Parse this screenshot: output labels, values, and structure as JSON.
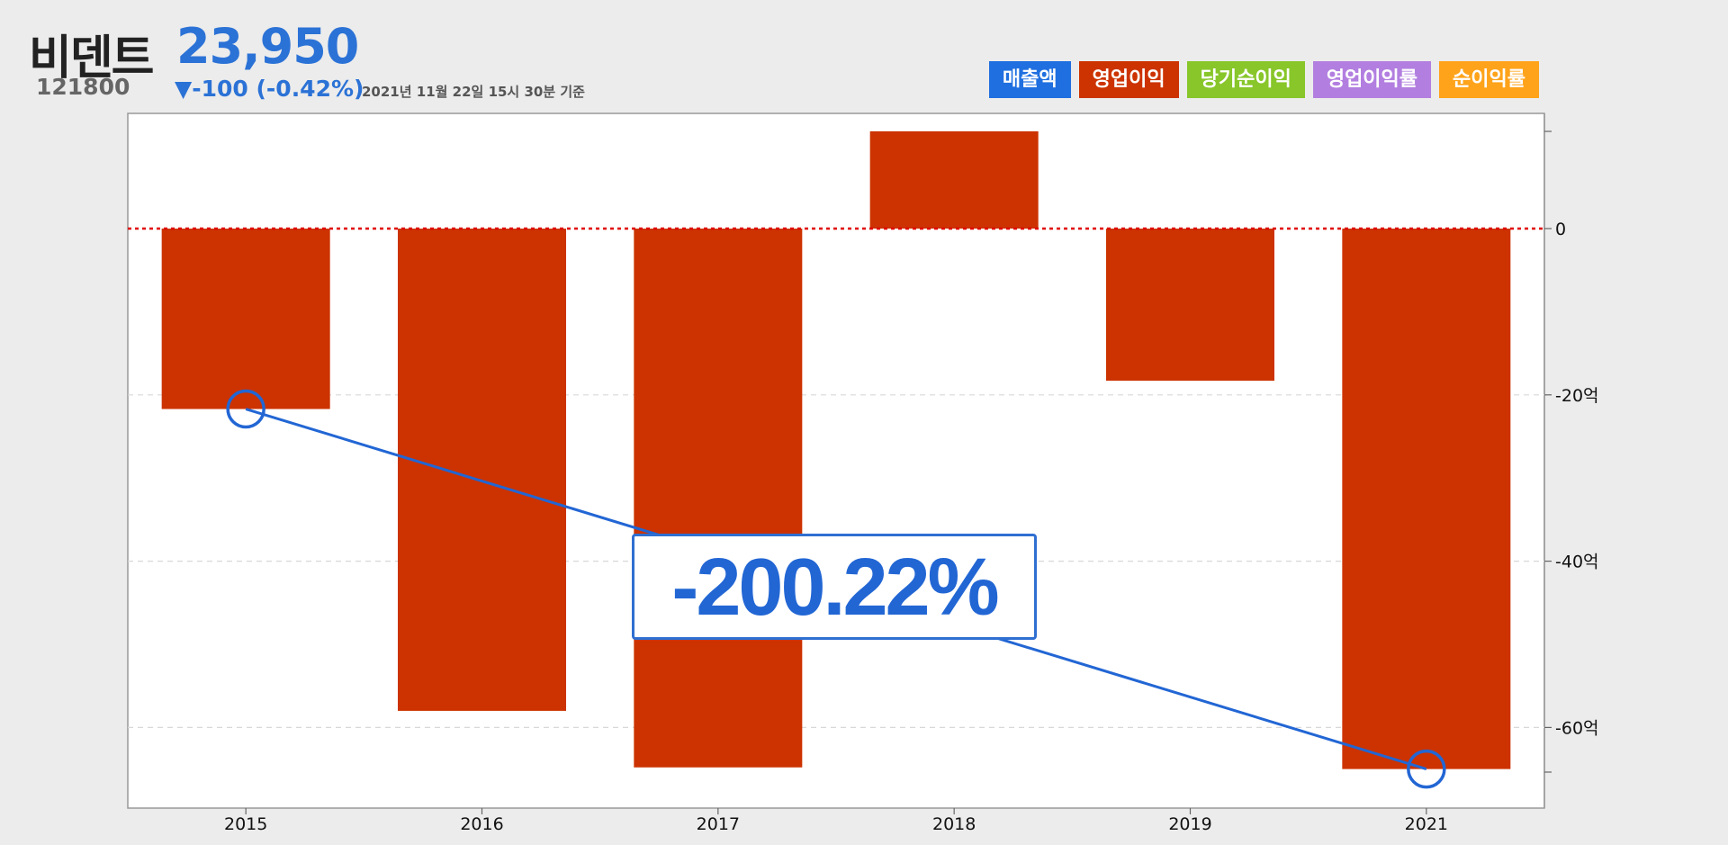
{
  "header": {
    "name": "비덴트",
    "code": "121800",
    "price": "23,950",
    "change": "▼-100 (-0.42%)",
    "timestamp": "2021년 11월 22일 15시 30분 기준"
  },
  "legend": [
    {
      "label": "매출액",
      "color": "#1f6fe0"
    },
    {
      "label": "영업이익",
      "color": "#cc3300"
    },
    {
      "label": "당기순이익",
      "color": "#88c62a"
    },
    {
      "label": "영업이익률",
      "color": "#b27fe0"
    },
    {
      "label": "순이익률",
      "color": "#ffa31a"
    }
  ],
  "callout": {
    "text": "-200.22%"
  },
  "chart_data": {
    "type": "bar",
    "categories": [
      "2015",
      "2016",
      "2017",
      "2018",
      "2019",
      "2021"
    ],
    "series": [
      {
        "name": "영업이익",
        "color": "#cc3300",
        "values": [
          -21.7,
          -58,
          -64.8,
          11.7,
          -18.3,
          -65
        ]
      }
    ],
    "trend_line": {
      "from": "2015",
      "to": "2021",
      "values": [
        -21.7,
        -65
      ],
      "color": "#2266d4",
      "label": "-200.22%"
    },
    "yticks": [
      {
        "value": 0,
        "label": "0"
      },
      {
        "value": -20,
        "label": "-20억"
      },
      {
        "value": -40,
        "label": "-40억"
      },
      {
        "value": -60,
        "label": "-60억"
      }
    ],
    "zero_line_color": "#e00000",
    "ylim": [
      -70,
      14
    ],
    "grid": true
  }
}
